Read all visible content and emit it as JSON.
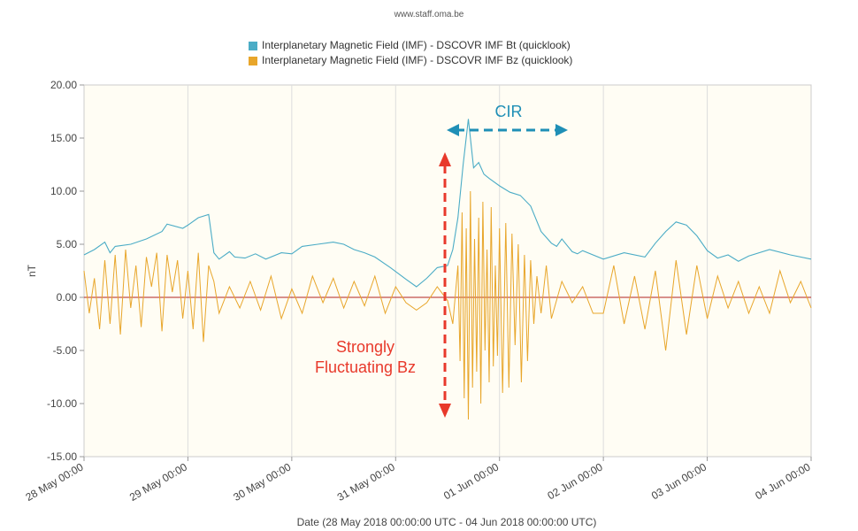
{
  "credit": "www.staff.oma.be",
  "chart_data": {
    "type": "line",
    "ylabel": "nT",
    "xlabel": "Date (28 May 2018 00:00:00 UTC - 04 Jun 2018 00:00:00 UTC)",
    "ylim": [
      -15,
      20
    ],
    "xlim": [
      0,
      7
    ],
    "x_unit": "days since 28 May 2018 00:00 UTC",
    "x_ticks": [
      0,
      1,
      2,
      3,
      4,
      5,
      6,
      7
    ],
    "x_tick_labels": [
      "28 May 00:00",
      "29 May 00:00",
      "30 May 00:00",
      "31 May 00:00",
      "01 Jun 00:00",
      "02 Jun 00:00",
      "03 Jun 00:00",
      "04 Jun 00:00"
    ],
    "y_ticks": [
      20,
      15,
      10,
      5,
      0,
      -5,
      -10,
      -15
    ],
    "y_tick_labels": [
      "20.00",
      "15.00",
      "10.00",
      "5.00",
      "0.00",
      "-5.00",
      "-10.00",
      "-15.00"
    ],
    "grid": "vertical",
    "legend_position": "top-center",
    "colors": {
      "bt": "#4bacc6",
      "bz": "#e8a62b",
      "zero_line": "#b22222",
      "plot_bg": "#fffdf4",
      "annot_red": "#e8392b",
      "annot_blue": "#1f8fb6"
    },
    "series": [
      {
        "name": "Interplanetary Magnetic Field (IMF) - DSCOVR IMF Bt (quicklook)",
        "color": "#4bacc6",
        "x": [
          0,
          0.1,
          0.2,
          0.25,
          0.3,
          0.45,
          0.6,
          0.75,
          0.8,
          0.95,
          1.0,
          1.1,
          1.2,
          1.25,
          1.3,
          1.4,
          1.45,
          1.55,
          1.65,
          1.75,
          1.9,
          2.0,
          2.1,
          2.25,
          2.4,
          2.5,
          2.6,
          2.7,
          2.8,
          2.95,
          3.1,
          3.2,
          3.3,
          3.4,
          3.5,
          3.55,
          3.6,
          3.65,
          3.7,
          3.75,
          3.8,
          3.85,
          3.9,
          4.0,
          4.1,
          4.2,
          4.3,
          4.4,
          4.5,
          4.55,
          4.6,
          4.65,
          4.7,
          4.75,
          4.8,
          5.0,
          5.2,
          5.4,
          5.5,
          5.6,
          5.7,
          5.8,
          5.9,
          6.0,
          6.1,
          6.2,
          6.3,
          6.4,
          6.6,
          6.8,
          7.0
        ],
        "y": [
          4.0,
          4.5,
          5.2,
          4.2,
          4.8,
          5.0,
          5.5,
          6.2,
          6.9,
          6.5,
          6.8,
          7.5,
          7.8,
          4.2,
          3.6,
          4.3,
          3.8,
          3.7,
          4.1,
          3.6,
          4.2,
          4.1,
          4.8,
          5.0,
          5.2,
          5.0,
          4.5,
          4.2,
          3.8,
          2.8,
          1.7,
          1.0,
          1.8,
          2.8,
          3.0,
          4.5,
          7.5,
          12.5,
          16.8,
          12.2,
          12.7,
          11.6,
          11.2,
          10.5,
          9.9,
          9.6,
          8.6,
          6.2,
          5.1,
          4.8,
          5.5,
          4.9,
          4.3,
          4.1,
          4.4,
          3.6,
          4.2,
          3.8,
          5.1,
          6.2,
          7.1,
          6.8,
          5.8,
          4.4,
          3.7,
          4.0,
          3.4,
          3.9,
          4.5,
          4.0,
          3.6
        ]
      },
      {
        "name": "Interplanetary Magnetic Field (IMF) - DSCOVR IMF Bz (quicklook)",
        "color": "#e8a62b",
        "x": [
          0,
          0.05,
          0.1,
          0.15,
          0.2,
          0.25,
          0.3,
          0.35,
          0.4,
          0.45,
          0.5,
          0.55,
          0.6,
          0.65,
          0.7,
          0.75,
          0.8,
          0.85,
          0.9,
          0.95,
          1.0,
          1.05,
          1.1,
          1.15,
          1.2,
          1.25,
          1.3,
          1.4,
          1.5,
          1.6,
          1.7,
          1.8,
          1.9,
          2.0,
          2.1,
          2.2,
          2.3,
          2.4,
          2.5,
          2.6,
          2.7,
          2.8,
          2.9,
          3.0,
          3.1,
          3.2,
          3.3,
          3.4,
          3.5,
          3.55,
          3.6,
          3.62,
          3.64,
          3.66,
          3.68,
          3.7,
          3.72,
          3.74,
          3.76,
          3.78,
          3.8,
          3.82,
          3.84,
          3.86,
          3.88,
          3.9,
          3.92,
          3.94,
          3.96,
          3.98,
          4.0,
          4.03,
          4.06,
          4.09,
          4.12,
          4.15,
          4.18,
          4.21,
          4.24,
          4.27,
          4.3,
          4.33,
          4.36,
          4.4,
          4.45,
          4.5,
          4.6,
          4.7,
          4.8,
          4.9,
          5.0,
          5.1,
          5.2,
          5.3,
          5.4,
          5.5,
          5.6,
          5.7,
          5.8,
          5.9,
          6.0,
          6.1,
          6.2,
          6.3,
          6.4,
          6.5,
          6.6,
          6.7,
          6.8,
          6.9,
          7.0
        ],
        "y": [
          2.5,
          -1.5,
          1.8,
          -3.0,
          3.5,
          -2.5,
          4.0,
          -3.5,
          4.5,
          -1.0,
          3.0,
          -2.8,
          3.8,
          1.0,
          4.2,
          -3.2,
          4.0,
          0.5,
          3.5,
          -2.0,
          2.5,
          -3.0,
          4.2,
          -4.2,
          3.0,
          1.5,
          -1.5,
          1.0,
          -1.0,
          1.5,
          -1.2,
          2.0,
          -2.0,
          0.8,
          -1.5,
          2.0,
          -0.5,
          1.8,
          -1.0,
          1.5,
          -0.8,
          2.0,
          -1.5,
          1.0,
          -0.5,
          -1.2,
          -0.5,
          1.0,
          -0.3,
          -2.5,
          3.0,
          -6.0,
          8.0,
          -9.5,
          6.5,
          -11.5,
          10.0,
          -8.5,
          5.5,
          -7.0,
          7.5,
          -10.0,
          9.0,
          -5.0,
          4.5,
          -8.0,
          8.5,
          -6.5,
          3.0,
          -5.5,
          6.5,
          -9.0,
          7.0,
          -8.5,
          6.0,
          -4.5,
          5.0,
          -8.0,
          4.0,
          -6.0,
          3.5,
          -2.5,
          2.0,
          -1.5,
          3.0,
          -2.0,
          1.5,
          -0.5,
          1.0,
          -1.5,
          -1.5,
          3.0,
          -2.5,
          2.0,
          -3.0,
          2.5,
          -5.0,
          3.5,
          -3.5,
          3.0,
          -2.0,
          2.0,
          -1.0,
          1.5,
          -1.5,
          1.0,
          -1.5,
          2.5,
          -0.5,
          1.5,
          -1.0
        ]
      }
    ],
    "annotations": [
      {
        "text": "CIR",
        "color": "#1f8fb6"
      },
      {
        "text": "Strongly",
        "color": "#e8392b"
      },
      {
        "text": "Fluctuating Bz",
        "color": "#e8392b"
      }
    ]
  }
}
